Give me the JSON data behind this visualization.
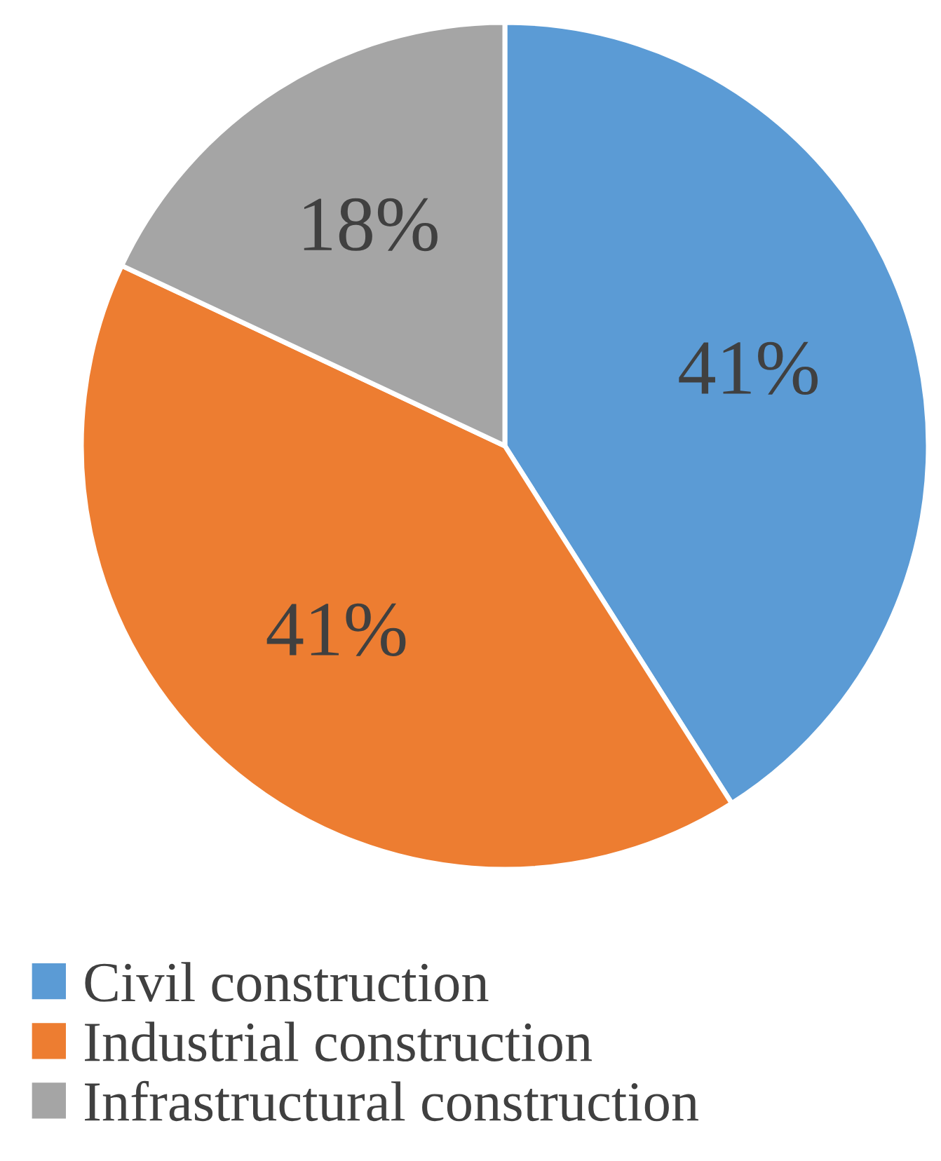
{
  "chart_data": {
    "type": "pie",
    "categories": [
      "Civil construction",
      "Industrial construction",
      "Infrastructural construction"
    ],
    "values": [
      41,
      41,
      18
    ],
    "colors": [
      "#5b9bd5",
      "#ed7d31",
      "#a5a5a5"
    ],
    "value_labels": [
      "41%",
      "41%",
      "18%"
    ],
    "legend": "bottom left"
  }
}
